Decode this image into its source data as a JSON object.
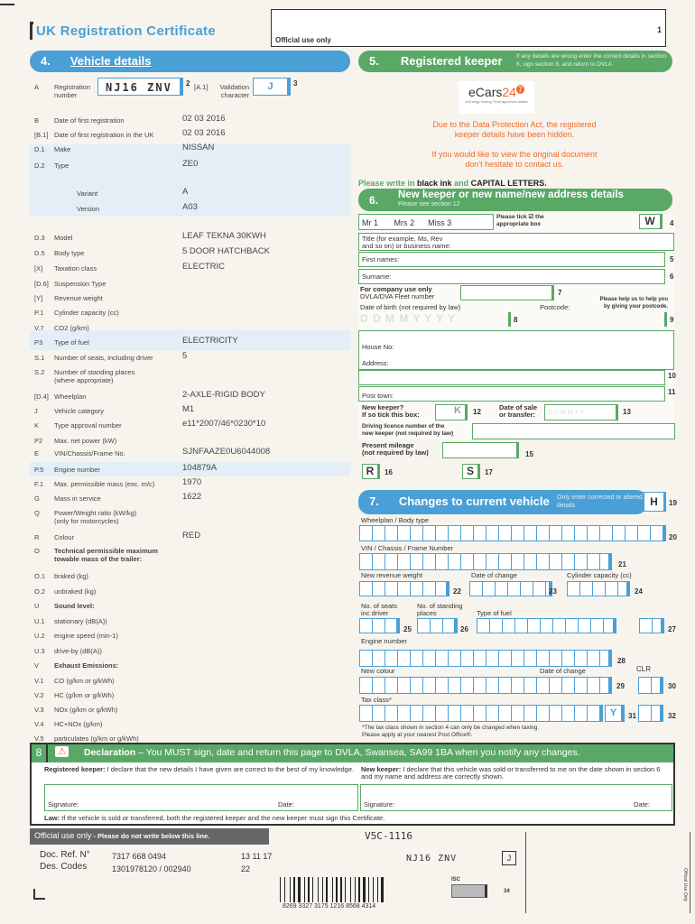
{
  "header": {
    "title": "UK Registration Certificate",
    "official_use": "Official use only",
    "page_number": "1"
  },
  "section4": {
    "number": "4.",
    "title": "Vehicle details",
    "reg_key": "A",
    "reg_label": "Registration number",
    "reg_value": "NJ16 ZNV",
    "reg_num": "2",
    "val_key": "[A.1]",
    "val_label": "Validation character",
    "val_value": "J",
    "val_num": "3",
    "rows": [
      {
        "key": "B",
        "label": "Date of first registration",
        "value": "02 03 2016"
      },
      {
        "key": "[B.1]",
        "label": "Date of first registration in the UK",
        "value": "02 03 2016"
      },
      {
        "key": "D.1",
        "label": "Make",
        "value": "NISSAN"
      },
      {
        "key": "D.2",
        "label": "Type",
        "value": "ZE0"
      },
      {
        "key": "",
        "label": "Variant",
        "value": "A"
      },
      {
        "key": "",
        "label": "Version",
        "value": "A03"
      },
      {
        "key": "D.3",
        "label": "Model",
        "value": "LEAF TEKNA 30KWH"
      },
      {
        "key": "D.5",
        "label": "Body type",
        "value": "5 DOOR HATCHBACK"
      },
      {
        "key": "[X]",
        "label": "Taxation class",
        "value": "ELECTRIC"
      },
      {
        "key": "[D.6]",
        "label": "Suspension Type",
        "value": ""
      },
      {
        "key": "[Y]",
        "label": "Revenue weight",
        "value": ""
      },
      {
        "key": "P.1",
        "label": "Cylinder capacity (cc)",
        "value": ""
      },
      {
        "key": "V.7",
        "label": "CO2 (g/km)",
        "value": ""
      },
      {
        "key": "P3",
        "label": "Type of fuel",
        "value": "ELECTRICITY"
      },
      {
        "key": "S.1",
        "label": "Number of seats, including driver",
        "value": "5"
      },
      {
        "key": "S.2",
        "label": "Number of standing places\n(where appropriate)",
        "value": ""
      },
      {
        "key": "[D.4]",
        "label": "Wheelplan",
        "value": "2-AXLE-RIGID BODY"
      },
      {
        "key": "J",
        "label": "Vehicle category",
        "value": "M1"
      },
      {
        "key": "K",
        "label": "Type approval number",
        "value": "e11*2007/46*0230*10"
      },
      {
        "key": "P2",
        "label": "Max. net power (kW)",
        "value": ""
      },
      {
        "key": "E",
        "label": "VIN/Chassis/Frame No.",
        "value": "SJNFAAZE0U6044008"
      },
      {
        "key": "P.5",
        "label": "Engine number",
        "value": "104879A"
      },
      {
        "key": "F.1",
        "label": "Max. permissible mass (exc. m/c)",
        "value": "1970"
      },
      {
        "key": "G",
        "label": "Mass in service",
        "value": "1622"
      },
      {
        "key": "Q",
        "label": "Power/Weight ratio (kW/kg)\n(only for motorcycles)",
        "value": ""
      },
      {
        "key": "R",
        "label": "Colour",
        "value": "RED"
      },
      {
        "key": "O",
        "label": "Technical permissible maximum\ntowable mass of the trailer:",
        "value": "",
        "bold": true
      },
      {
        "key": "O.1",
        "label": "braked (kg)",
        "value": ""
      },
      {
        "key": "O.2",
        "label": "unbraked (kg)",
        "value": ""
      },
      {
        "key": "U",
        "label": "Sound level:",
        "value": "",
        "bold": true
      },
      {
        "key": "U.1",
        "label": "stationary (dB(A))",
        "value": ""
      },
      {
        "key": "U.2",
        "label": "engine speed (min-1)",
        "value": ""
      },
      {
        "key": "U.3",
        "label": "drive-by (dB(A))",
        "value": ""
      },
      {
        "key": "V",
        "label": "Exhaust Emissions:",
        "value": "",
        "bold": true
      },
      {
        "key": "V.1",
        "label": "CO (g/km or g/kWh)",
        "value": ""
      },
      {
        "key": "V.2",
        "label": "HC (g/km or g/kWh)",
        "value": ""
      },
      {
        "key": "V.3",
        "label": "NOx (g/km or g/kWh)",
        "value": ""
      },
      {
        "key": "V.4",
        "label": "HC+NOx (g/km)",
        "value": ""
      },
      {
        "key": "V.5",
        "label": "particulates (g/km or g/kWh)",
        "value": ""
      }
    ]
  },
  "section5": {
    "number": "5.",
    "title": "Registered keeper",
    "note": "If any details are wrong enter the correct details in section 6, sign section 8, and return to DVLA"
  },
  "logo": {
    "text_a": "eCars",
    "text_b": "24",
    "text_c": "7",
    "tagline": "A Energy Saving Trust approved dealer"
  },
  "notice": {
    "line1": "Due to the Data Protection Act, the registered",
    "line2": "keeper details have been hidden.",
    "line3": "If you would like to view the original document",
    "line4": "don't hesitate to contact us."
  },
  "instruction": {
    "prefix": "Please write in ",
    "black_ink": "black ink",
    "and": " and ",
    "capitals": "CAPITAL LETTERS."
  },
  "section6": {
    "number": "6.",
    "title": "New keeper or new name/new address details",
    "subtitle": "Please see section 12",
    "mr": "Mr",
    "mr_n": "1",
    "mrs": "Mrs",
    "mrs_n": "2",
    "miss": "Miss",
    "miss_n": "3",
    "tick_note": "Please tick ☑ the appropriate box",
    "w": "W",
    "n4": "4",
    "title_label": "Title (for example, Ms, Rev\nand so on) or business name:",
    "first_names": "First names:",
    "n5": "5",
    "surname": "Surname:",
    "n6": "6",
    "company": "For company use only",
    "fleet": "DVLA/DVA Fleet number",
    "n7": "7",
    "dob": "Date of birth (not required by law)",
    "dob_mask": "D D M M Y Y Y Y",
    "n8": "8",
    "postcode": "Postcode:",
    "postcode_help": "Please help us to help you\nby giving your postcode.",
    "n9": "9",
    "house_no": "House No:",
    "address": "Address:",
    "n10": "10",
    "post_town": "Post town:",
    "n11": "11",
    "new_keeper": "New keeper?\nIf so tick this box:",
    "k": "K",
    "n12": "12",
    "date_sale": "Date of sale\nor transfer:",
    "date_mask": "D D M M Y Y",
    "n13": "13",
    "licence": "Driving licence number of the\nnew keeper (not required by law)",
    "mileage": "Present mileage\n(not required by law)",
    "n15": "15",
    "r": "R",
    "n16": "16",
    "s": "S",
    "n17": "17"
  },
  "section7": {
    "number": "7.",
    "title": "Changes to current vehicle",
    "note": "Only enter corrected or altered details",
    "h": "H",
    "n19": "19",
    "wheelplan": "Wheelplan / Body type",
    "n20": "20",
    "vin": "VIN / Chassis / Frame Number",
    "n21": "21",
    "revenue_weight": "New revenue weight",
    "n22": "22",
    "date_change": "Date of change",
    "n23": "23",
    "cylinder": "Cylinder capacity (cc)",
    "n24": "24",
    "seats": "No. of seats\ninc driver",
    "n25": "25",
    "standing": "No. of standing\nplaces",
    "n26": "26",
    "fuel": "Type of fuel",
    "n27": "27",
    "engine": "Engine number",
    "n28": "28",
    "colour": "New colour",
    "date_change2": "Date of change",
    "n29": "29",
    "clr": "CLR",
    "n30": "30",
    "tax_class": "Tax class*",
    "y": "Y",
    "n31": "31",
    "n32": "32",
    "footnote": "*The tax class shown in section 4 can only be changed when taxing.\nPlease apply at your nearest Post Office®."
  },
  "section8": {
    "number": "8",
    "title": "Declaration",
    "text": " – You MUST sign, date and return this page to DVLA, Swansea, SA99 1BA when you notify any changes.",
    "rk_bold": "Registered keeper:",
    "rk_text": " I declare that the new details I have given are correct to the best of my knowledge.",
    "nk_bold": "New keeper:",
    "nk_text": " I declare that this vehicle was sold or transferred to me on the date shown in section 6 and my name and address are correctly shown.",
    "signature": "Signature:",
    "date": "Date:",
    "law_bold": "Law:",
    "law_text": " If the vehicle is sold or transferred, both the registered keeper and the new keeper must sign this Certificate."
  },
  "footer": {
    "official": "Official use only",
    "official_note": " - Please do not write below this line.",
    "form_code": "V5C-1116",
    "doc_ref_label": "Doc. Ref. N°",
    "doc_ref": "7317 668 0494",
    "doc_date": "13 11 17",
    "des_codes_label": "Des. Codes",
    "des_codes": "1301978120 / 002940",
    "des_num": "22",
    "reg": "NJ16 ZNV",
    "val": "J",
    "barcode_number": "8269 3327 3175 1216 8568 4314",
    "isc": "ISC",
    "n34": "34",
    "side_text": "Official Use Only"
  },
  "colors": {
    "blue": "#4a9fd6",
    "green": "#5aa866",
    "orange": "#f06a28"
  }
}
